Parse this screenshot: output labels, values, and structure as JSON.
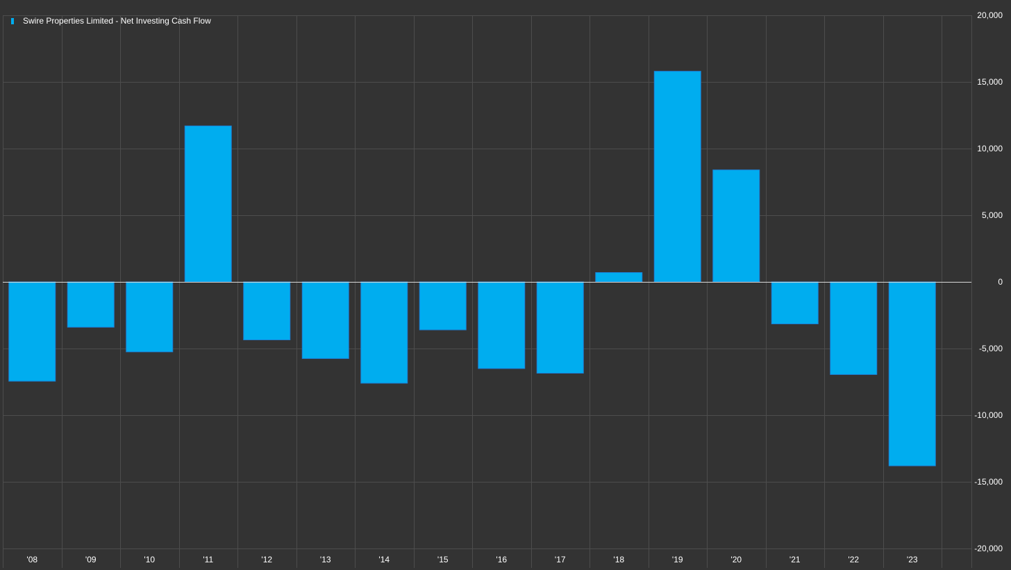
{
  "chart_data": {
    "type": "bar",
    "title": "",
    "xlabel": "",
    "ylabel": "",
    "legend": {
      "position": "top-left",
      "entries": [
        "Swire Properties Limited - Net Investing Cash Flow"
      ]
    },
    "categories": [
      "'08",
      "'09",
      "'10",
      "'11",
      "'12",
      "'13",
      "'14",
      "'15",
      "'16",
      "'17",
      "'18",
      "'19",
      "'20",
      "'21",
      "'22",
      "'23"
    ],
    "series": [
      {
        "name": "Swire Properties Limited - Net Investing Cash Flow",
        "values": [
          -7450,
          -3400,
          -5250,
          11700,
          -4350,
          -5750,
          -7600,
          -3600,
          -6500,
          -6850,
          700,
          15800,
          8400,
          -3150,
          -6950,
          -13800
        ]
      }
    ],
    "ylim": [
      -20000,
      20000
    ],
    "yticks": [
      20000,
      15000,
      10000,
      5000,
      0,
      -5000,
      -10000,
      -15000,
      -20000
    ],
    "ytick_labels": [
      "20,000",
      "15,000",
      "10,000",
      "5,000",
      "0",
      "-5,000",
      "-10,000",
      "-15,000",
      "-20,000"
    ],
    "y_axis_side": "right",
    "grid": true,
    "colors": {
      "background": "#333333",
      "bar_fill": "#00adef",
      "bar_stroke": "#1c7fd6",
      "grid": "#4d4d4d",
      "zero_line": "#d9d9d9",
      "text": "#ffffff"
    }
  }
}
